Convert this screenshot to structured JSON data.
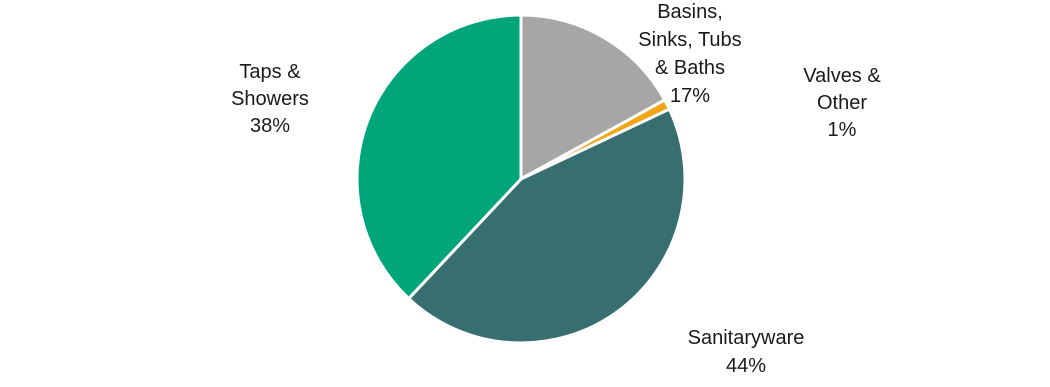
{
  "chart_data": {
    "type": "pie",
    "title": "",
    "slices": [
      {
        "label_lines": [
          "Basins,",
          "Sinks, Tubs",
          "& Baths"
        ],
        "percent_label": "17%",
        "value": 17,
        "color": "#a6a6a6"
      },
      {
        "label_lines": [
          "Valves &",
          "Other"
        ],
        "percent_label": "1%",
        "value": 1,
        "color": "#f2a516"
      },
      {
        "label_lines": [
          "Sanitaryware"
        ],
        "percent_label": "44%",
        "value": 44,
        "color": "#376e6f"
      },
      {
        "label_lines": [
          "Taps &",
          "Showers"
        ],
        "percent_label": "38%",
        "value": 38,
        "color": "#00a57a"
      }
    ]
  }
}
